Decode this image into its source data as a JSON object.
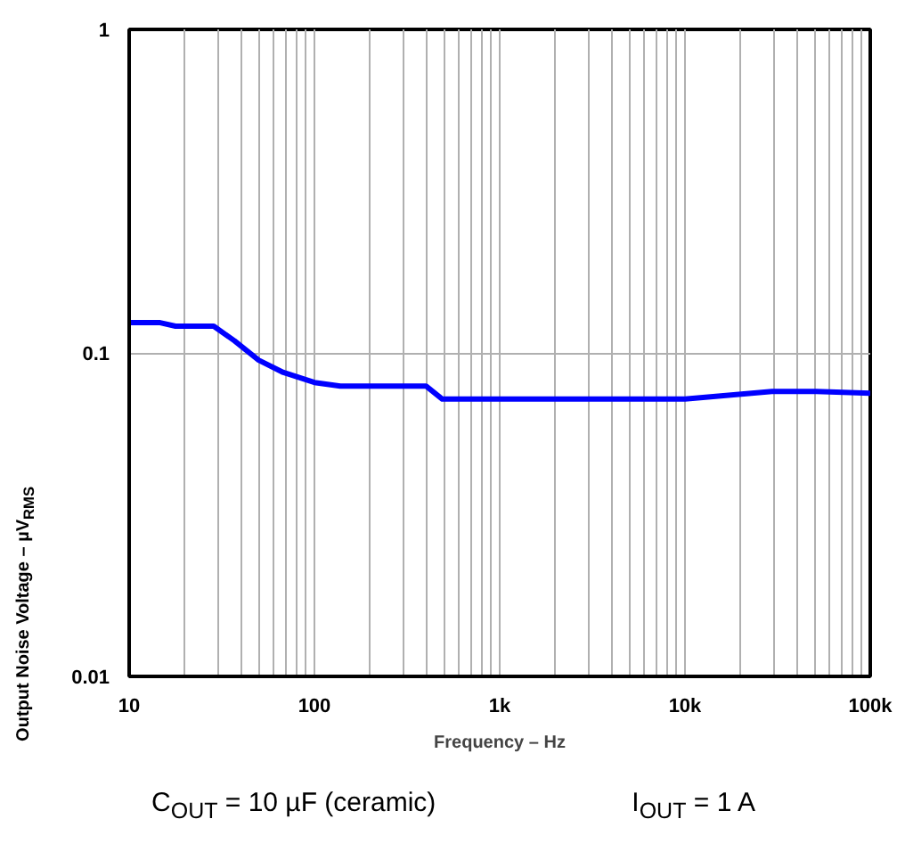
{
  "chart_data": {
    "type": "line",
    "xlabel": "Frequency – Hz",
    "ylabel": "Output Noise Voltage – µV$_{RMS}$",
    "annotations": [
      "C$_{OUT}$ = 10 µF (ceramic)",
      "I$_{OUT}$ = 1 A"
    ],
    "log": "xy",
    "grid": true,
    "xlim": [
      10,
      100000
    ],
    "ylim": [
      0.01,
      1
    ],
    "xticks": [
      {
        "value": 10,
        "label": "10"
      },
      {
        "value": 100,
        "label": "100"
      },
      {
        "value": 1000,
        "label": "1k"
      },
      {
        "value": 10000,
        "label": "10k"
      },
      {
        "value": 100000,
        "label": "100k"
      }
    ],
    "yticks": [
      0.01,
      0.1,
      1
    ],
    "series": [
      {
        "color": "#0000ff",
        "x": [
          10,
          14.7,
          17.8,
          28.6,
          37,
          50,
          68,
          100,
          138,
          400,
          490,
          10000,
          29500,
          51000,
          100000
        ],
        "values": [
          0.124,
          0.124,
          0.121,
          0.121,
          0.109,
          0.095,
          0.087,
          0.081,
          0.079,
          0.079,
          0.072,
          0.072,
          0.076,
          0.076,
          0.075
        ]
      }
    ]
  }
}
